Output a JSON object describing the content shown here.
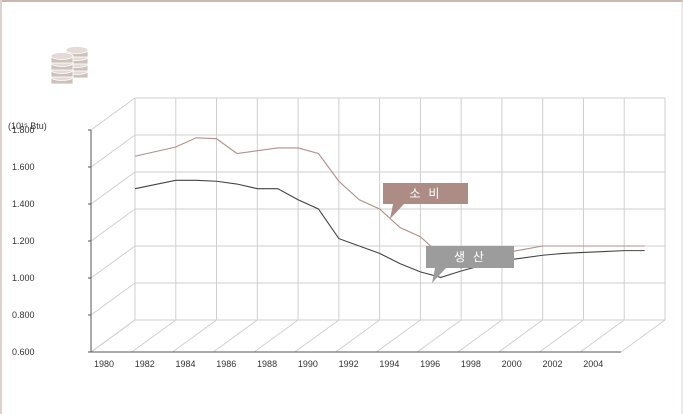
{
  "colors": {
    "frame_top": "#c9b6b0",
    "frame_left": "#ddd2cf",
    "grid": "#cfcfcf",
    "axis": "#555555",
    "consumption_line": "#b38f89",
    "production_line": "#444444",
    "consumption_callout": "#ad8c86",
    "production_callout": "#9c9c9c",
    "icon": "#cdc1bc"
  },
  "icon": "database-stack-icon",
  "unit_label": "(10¹⁵ Btu)",
  "chart_data": {
    "type": "line",
    "title": "",
    "xlabel": "",
    "ylabel": "(10¹⁵ Btu)",
    "ylim": [
      0.6,
      1.8
    ],
    "yticks": [
      "1.800",
      "1.600",
      "1.400",
      "1.200",
      "1.000",
      "0.800",
      "0.600"
    ],
    "ytick_values": [
      1.8,
      1.6,
      1.4,
      1.2,
      1.0,
      0.8,
      0.6
    ],
    "xticks": [
      "1980",
      "1982",
      "1984",
      "1986",
      "1988",
      "1990",
      "1992",
      "1994",
      "1996",
      "1998",
      "2000",
      "2002",
      "2004"
    ],
    "xtick_values": [
      1980,
      1982,
      1984,
      1986,
      1988,
      1990,
      1992,
      1994,
      1996,
      1998,
      2000,
      2002,
      2004
    ],
    "xlim": [
      1980,
      2006
    ],
    "grid": true,
    "series": [
      {
        "name": "소 비",
        "x": [
          1980,
          1982,
          1983,
          1984,
          1985,
          1986,
          1987,
          1988,
          1989,
          1990,
          1991,
          1992,
          1993,
          1994,
          1995,
          1996,
          1997,
          1998,
          1999,
          2000,
          2001,
          2002,
          2003,
          2004,
          2005
        ],
        "values": [
          1.485,
          1.535,
          1.585,
          1.58,
          1.5,
          1.515,
          1.53,
          1.53,
          1.5,
          1.35,
          1.25,
          1.2,
          1.1,
          1.05,
          0.95,
          0.88,
          0.92,
          0.96,
          0.98,
          1.0,
          1.0,
          1.0,
          1.0,
          1.0,
          1.0
        ]
      },
      {
        "name": "생 산",
        "x": [
          1980,
          1982,
          1983,
          1984,
          1985,
          1986,
          1987,
          1988,
          1989,
          1990,
          1991,
          1992,
          1993,
          1994,
          1995,
          1996,
          1997,
          1998,
          1999,
          2000,
          2001,
          2002,
          2003,
          2004,
          2005
        ],
        "values": [
          1.31,
          1.355,
          1.355,
          1.35,
          1.335,
          1.31,
          1.31,
          1.25,
          1.2,
          1.04,
          1.0,
          0.96,
          0.905,
          0.86,
          0.83,
          0.865,
          0.895,
          0.92,
          0.935,
          0.95,
          0.96,
          0.965,
          0.97,
          0.975,
          0.975
        ]
      }
    ]
  }
}
